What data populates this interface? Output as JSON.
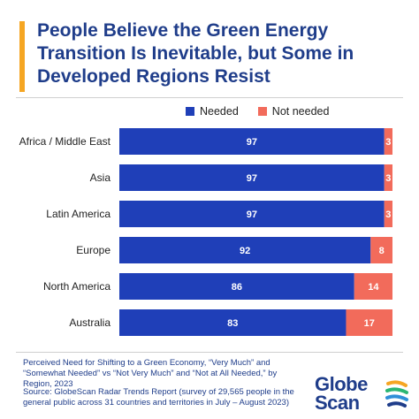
{
  "header": {
    "title_lines": [
      "People Believe the Green Energy",
      "Transition Is Inevitable, but Some in",
      "Developed Regions Resist"
    ]
  },
  "legend": {
    "needed": "Needed",
    "not_needed": "Not needed"
  },
  "footer": {
    "note": "Perceived Need for Shifting to a Green Economy, “Very Much” and “Somewhat Needed” vs “Not Very Much” and “Not at All Needed,” by Region, 2023",
    "source": "Source: GlobeScan Radar Trends Report (survey of 29,565 people in the general public across 31 countries and territories in July – August 2023)"
  },
  "logo": {
    "line1": "Globe",
    "line2": "Scan"
  },
  "colors": {
    "needed": "#1f3fb8",
    "not_needed": "#f26b5b",
    "title": "#1f3d8a",
    "accent": "#f5a623"
  },
  "chart_data": {
    "type": "bar",
    "orientation": "horizontal",
    "stacked": true,
    "categories": [
      "Africa / Middle East",
      "Asia",
      "Latin America",
      "Europe",
      "North America",
      "Australia"
    ],
    "series": [
      {
        "name": "Needed",
        "values": [
          97,
          97,
          97,
          92,
          86,
          83
        ]
      },
      {
        "name": "Not needed",
        "values": [
          3,
          3,
          3,
          8,
          14,
          17
        ]
      }
    ],
    "xlim": [
      0,
      100
    ],
    "legend_position": "top",
    "grid": false
  }
}
